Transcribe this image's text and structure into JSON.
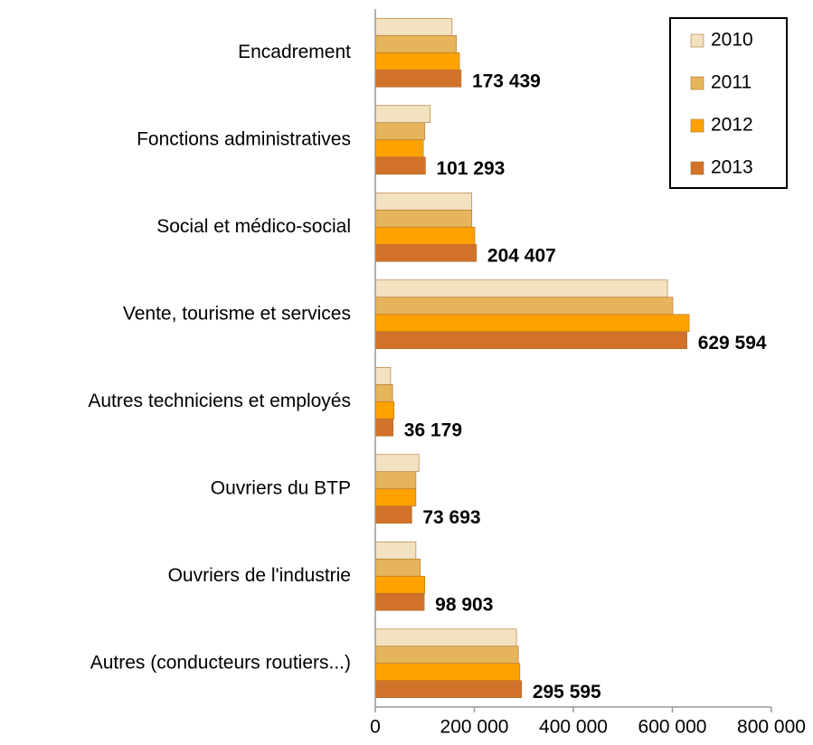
{
  "chart_data": {
    "type": "hbar",
    "categories": [
      "Encadrement",
      "Fonctions administratives",
      "Social et médico-social",
      "Vente, tourisme et services",
      "Autres techniciens et employés",
      "Ouvriers du BTP",
      "Ouvriers de l'industrie",
      "Autres (conducteurs routiers...)"
    ],
    "series": [
      {
        "name": "2010",
        "color": "#f3e2c0",
        "values": [
          155000,
          111000,
          195000,
          590000,
          31000,
          88000,
          82000,
          285000
        ]
      },
      {
        "name": "2011",
        "color": "#e6b45a",
        "values": [
          164000,
          100000,
          195000,
          601000,
          35000,
          82000,
          91000,
          289000
        ]
      },
      {
        "name": "2012",
        "color": "#ffa200",
        "values": [
          170000,
          97000,
          201000,
          634000,
          38000,
          82000,
          100000,
          292000
        ]
      },
      {
        "name": "2013",
        "color": "#d2722a",
        "values": [
          173439,
          101293,
          204407,
          629594,
          36179,
          73693,
          98903,
          295595
        ],
        "value_labels": [
          "173 439",
          "101 293",
          "204 407",
          "629 594",
          "36 179",
          "73 693",
          "98 903",
          "295 595"
        ]
      }
    ],
    "xlim": [
      0,
      800000
    ],
    "xticks": [
      0,
      {
        "value": 200000,
        "label": "200 000"
      },
      {
        "value": 400000,
        "label": "400 000"
      },
      {
        "value": 600000,
        "label": "600 000"
      },
      {
        "value": 800000,
        "label": "800 000"
      }
    ],
    "legend": "top-right"
  }
}
